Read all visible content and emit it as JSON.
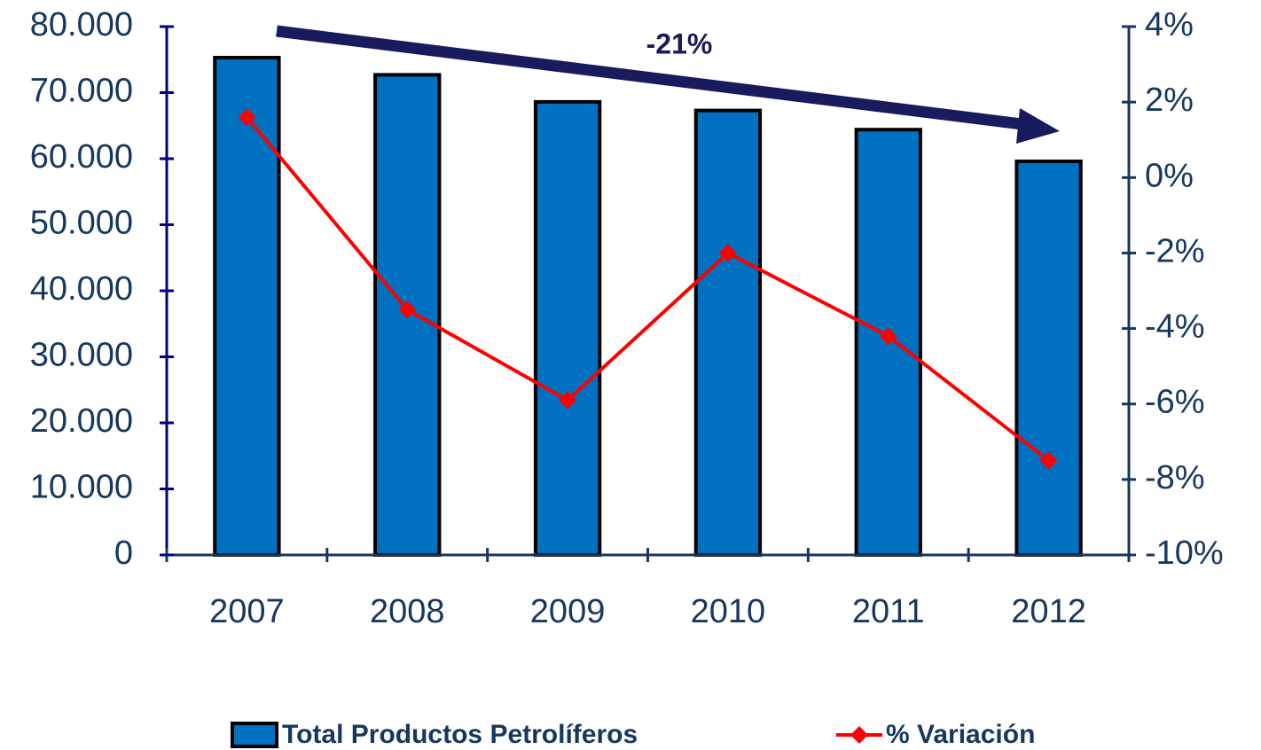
{
  "chart_data": {
    "type": "bar_line",
    "categories": [
      "2007",
      "2008",
      "2009",
      "2010",
      "2011",
      "2012"
    ],
    "series": [
      {
        "name": "Total Productos Petrolíferos",
        "type": "bar",
        "color": "#0070c0",
        "values": [
          75300,
          72700,
          68600,
          67300,
          64400,
          59600
        ]
      },
      {
        "name": "% Variación",
        "type": "line",
        "axis": "y2",
        "color": "#ff0000",
        "values": [
          1.6,
          -3.5,
          -5.9,
          -2.0,
          -4.2,
          -7.5
        ]
      }
    ],
    "ylim": [
      0,
      80000
    ],
    "yticks": [
      0,
      {
        "value": 10000,
        "label": "10.000"
      },
      {
        "value": 20000,
        "label": "20.000"
      },
      {
        "value": 30000,
        "label": "30.000"
      },
      {
        "value": 40000,
        "label": "40.000"
      },
      {
        "value": 50000,
        "label": "50.000"
      },
      {
        "value": 60000,
        "label": "60.000"
      },
      {
        "value": 70000,
        "label": "70.000"
      },
      {
        "value": 80000,
        "label": "80.000"
      }
    ],
    "y2lim": [
      -10,
      4
    ],
    "y2ticks": [
      {
        "value": -10,
        "label": "-10%"
      },
      {
        "value": -8,
        "label": "-8%"
      },
      {
        "value": -6,
        "label": "-6%"
      },
      {
        "value": -4,
        "label": "-4%"
      },
      {
        "value": -2,
        "label": "-2%"
      },
      {
        "value": 0,
        "label": "0%"
      },
      {
        "value": 2,
        "label": "2%"
      },
      {
        "value": 4,
        "label": "4%"
      }
    ],
    "annotation": "-21%",
    "legend": "bottom",
    "grid": false
  }
}
